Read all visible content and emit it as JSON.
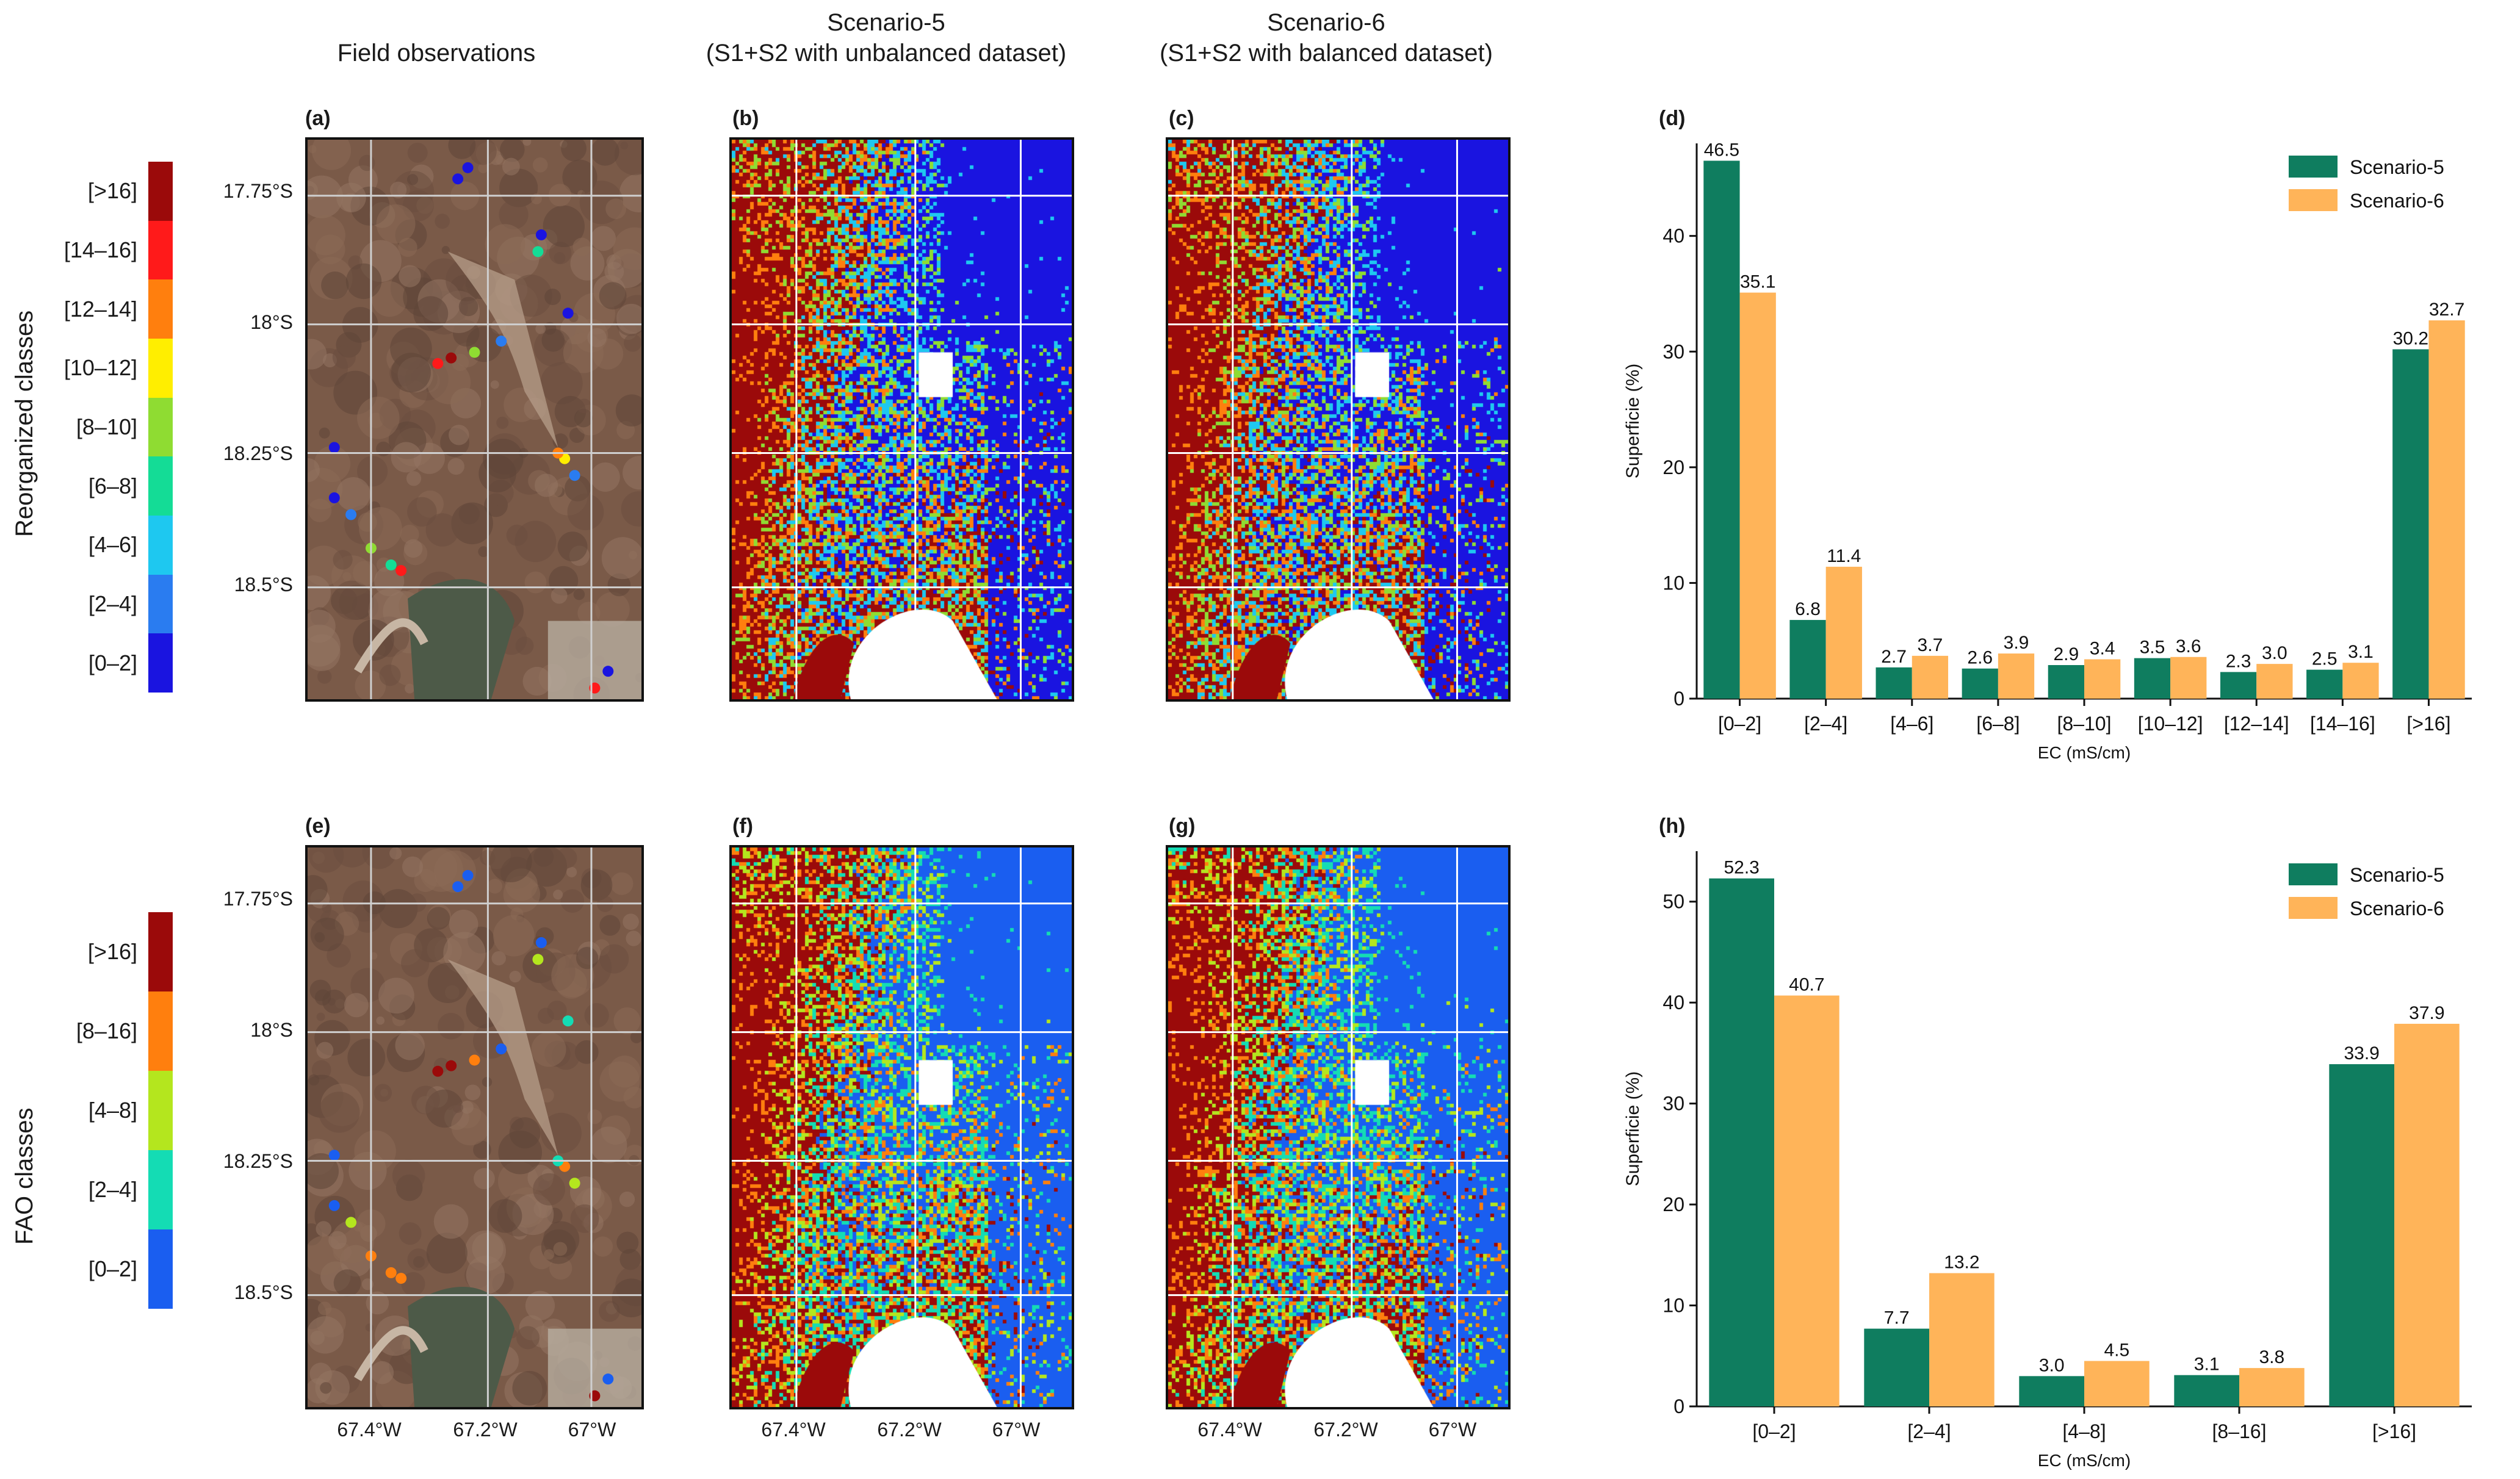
{
  "column_titles": {
    "field": "Field observations",
    "s5_line1": "Scenario-5",
    "s5_line2": "(S1+S2 with unbalanced dataset)",
    "s6_line1": "Scenario-6",
    "s6_line2": "(S1+S2 with balanced dataset)"
  },
  "row_labels": {
    "top": "Reorganized classes",
    "bottom": "FAO classes"
  },
  "panel_labels": {
    "a": "(a)",
    "b": "(b)",
    "c": "(c)",
    "d": "(d)",
    "e": "(e)",
    "f": "(f)",
    "g": "(g)",
    "h": "(h)"
  },
  "legend_top": {
    "classes": [
      "[>16]",
      "[14–16]",
      "[12–14]",
      "[10–12]",
      "[8–10]",
      "[6–8]",
      "[4–6]",
      "[2–4]",
      "[0–2]"
    ],
    "colors": [
      "#9b0a0a",
      "#ff1a1a",
      "#ff7f0e",
      "#ffee00",
      "#8fdc32",
      "#14dc96",
      "#1ec8f0",
      "#2a7cf0",
      "#1a14e0"
    ]
  },
  "legend_bottom": {
    "classes": [
      "[>16]",
      "[8–16]",
      "[4–8]",
      "[2–4]",
      "[0–2]"
    ],
    "colors": [
      "#9b0a0a",
      "#ff7f0e",
      "#b4e61e",
      "#14dcb4",
      "#1a5ef0"
    ]
  },
  "lat_labels": [
    "17.75°S",
    "18°S",
    "18.25°S",
    "18.5°S"
  ],
  "lon_labels": [
    "67.4°W",
    "67.2°W",
    "67°W"
  ],
  "chart_data": [
    {
      "type": "bar",
      "panel": "(d)",
      "categories": [
        "[0–2]",
        "[2–4]",
        "[4–6]",
        "[6–8]",
        "[8–10]",
        "[10–12]",
        "[12–14]",
        "[14–16]",
        "[>16]"
      ],
      "series": [
        {
          "name": "Scenario-5",
          "color": "#0f7d5f",
          "values": [
            46.5,
            6.8,
            2.7,
            2.6,
            2.9,
            3.5,
            2.3,
            2.5,
            30.2
          ]
        },
        {
          "name": "Scenario-6",
          "color": "#ffb459",
          "values": [
            35.1,
            11.4,
            3.7,
            3.9,
            3.4,
            3.6,
            3.0,
            3.1,
            32.7
          ]
        }
      ],
      "xlabel": "EC (mS/cm)",
      "ylabel": "Superficie (%)",
      "ylim": [
        0,
        48
      ],
      "yticks": [
        0,
        10,
        20,
        30,
        40
      ],
      "legend": "top-right"
    },
    {
      "type": "bar",
      "panel": "(h)",
      "categories": [
        "[0–2]",
        "[2–4]",
        "[4–8]",
        "[8–16]",
        "[>16]"
      ],
      "series": [
        {
          "name": "Scenario-5",
          "color": "#0f7d5f",
          "values": [
            52.3,
            7.7,
            3.0,
            3.1,
            33.9
          ]
        },
        {
          "name": "Scenario-6",
          "color": "#ffb459",
          "values": [
            40.7,
            13.2,
            4.5,
            3.8,
            37.9
          ]
        }
      ],
      "xlabel": "EC (mS/cm)",
      "ylabel": "Superficie (%)",
      "ylim": [
        0,
        55
      ],
      "yticks": [
        0,
        10,
        20,
        30,
        40,
        50
      ],
      "legend": "top-right"
    }
  ]
}
